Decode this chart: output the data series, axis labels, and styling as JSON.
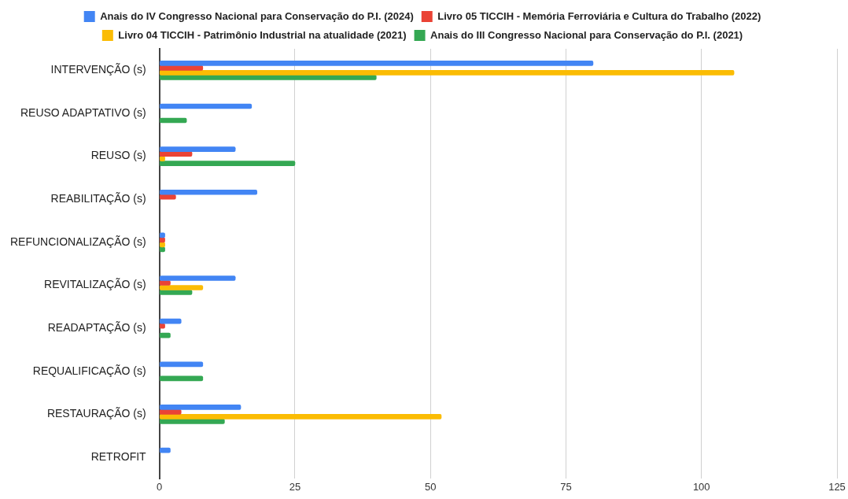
{
  "chart_data": {
    "type": "bar",
    "orientation": "horizontal",
    "categories": [
      "INTERVENÇÃO (s)",
      "REUSO ADAPTATIVO (s)",
      "REUSO (s)",
      "REABILITAÇÃO (s)",
      "REFUNCIONALIZAÇÃO (s)",
      "REVITALIZAÇÃO (s)",
      "READAPTAÇÃO (s)",
      "REQUALIFICAÇÃO (s)",
      "RESTAURAÇÃO (s)",
      "RETROFIT"
    ],
    "series": [
      {
        "name": "Anais do IV Congresso Nacional para Conservação do P.I. (2024)",
        "color": "#4285f4",
        "values": [
          80,
          17,
          14,
          18,
          1,
          14,
          4,
          8,
          15,
          2
        ]
      },
      {
        "name": "Livro 05 TICCIH - Memória Ferroviária e Cultura do Trabalho (2022)",
        "color": "#ea4335",
        "values": [
          8,
          null,
          6,
          3,
          1,
          2,
          1,
          null,
          4,
          null
        ]
      },
      {
        "name": "Livro 04 TICCIH - Patrimônio Industrial na atualidade (2021)",
        "color": "#fbbc04",
        "values": [
          106,
          null,
          1,
          null,
          1,
          8,
          null,
          null,
          52,
          null
        ]
      },
      {
        "name": "Anais do III Congresso Nacional para Conservação do P.I. (2021)",
        "color": "#34a853",
        "values": [
          40,
          5,
          25,
          null,
          1,
          6,
          2,
          8,
          12,
          null
        ]
      }
    ],
    "xlim": [
      0,
      125
    ],
    "xticks": [
      0,
      25,
      50,
      75,
      100,
      125
    ],
    "grid": "x",
    "legend": "top"
  }
}
